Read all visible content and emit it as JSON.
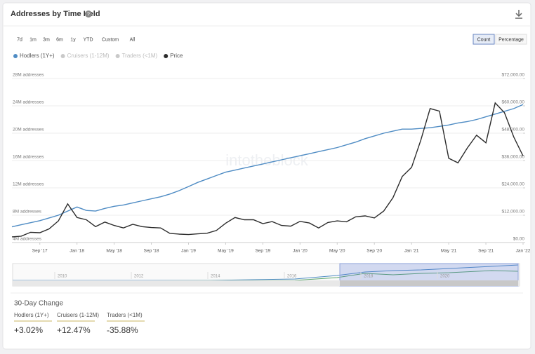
{
  "header": {
    "title": "Addresses by Time Held"
  },
  "range_buttons": [
    "7d",
    "1m",
    "3m",
    "6m",
    "1y",
    "YTD",
    "Custom",
    "All"
  ],
  "mode_buttons": [
    "Count",
    "Percentage"
  ],
  "active_mode": 0,
  "watermark": "intotheblock",
  "chart_data": {
    "type": "line",
    "categories": [
      null,
      null,
      null,
      "Sep '17",
      null,
      null,
      null,
      "Jan '18",
      null,
      null,
      null,
      "May '18",
      null,
      null,
      null,
      "Sep '18",
      null,
      null,
      null,
      "Jan '19",
      null,
      null,
      null,
      "May '19",
      null,
      null,
      null,
      "Sep '19",
      null,
      null,
      null,
      "Jan '20",
      null,
      null,
      null,
      "May '20",
      null,
      null,
      null,
      "Sep '20",
      null,
      null,
      null,
      "Jan '21",
      null,
      null,
      null,
      "May '21",
      null,
      null,
      null,
      "Sep '21",
      null,
      null,
      null,
      "Jan '22"
    ],
    "series": [
      {
        "name": "Hodlers (1Y+)",
        "color": "#4f8cc4",
        "visible": true,
        "values": [
          6300000,
          6600000,
          6900000,
          7200000,
          7600000,
          8000000,
          8600000,
          9200000,
          8700000,
          8600000,
          9000000,
          9300000,
          9500000,
          9800000,
          10100000,
          10400000,
          10700000,
          11100000,
          11600000,
          12200000,
          12800000,
          13300000,
          13800000,
          14300000,
          14600000,
          14900000,
          15200000,
          15500000,
          15800000,
          16100000,
          16400000,
          16700000,
          17000000,
          17300000,
          17600000,
          17900000,
          18300000,
          18700000,
          19200000,
          19600000,
          20000000,
          20300000,
          20600000,
          20600000,
          20700000,
          20800000,
          21000000,
          21200000,
          21500000,
          21700000,
          22000000,
          22400000,
          22800000,
          23200000,
          23600000,
          24200000
        ]
      },
      {
        "name": "Cruisers (1-12M)",
        "color": "#c9c9c9",
        "visible": false
      },
      {
        "name": "Traders (<1M)",
        "color": "#c9c9c9",
        "visible": false
      },
      {
        "name": "Price",
        "color": "#2b2b2b",
        "visible": true,
        "axis": "y2",
        "values": [
          2500,
          2800,
          4500,
          4300,
          6000,
          9500,
          17000,
          11000,
          10000,
          7000,
          9000,
          7500,
          6400,
          8000,
          7000,
          6600,
          6400,
          4000,
          3700,
          3500,
          3800,
          4100,
          5300,
          8500,
          11000,
          10000,
          10000,
          8300,
          9200,
          7500,
          7200,
          9300,
          8600,
          6400,
          8800,
          9500,
          9100,
          11300,
          11700,
          10800,
          13800,
          19700,
          29000,
          33000,
          45000,
          58800,
          57700,
          37000,
          35000,
          41500,
          47100,
          43800,
          61300,
          57000,
          46300,
          38000
        ]
      }
    ],
    "ylim": [
      4000000,
      28000000
    ],
    "yticks": [
      {
        "value": 4000000,
        "label": "4M addresses"
      },
      {
        "value": 8000000,
        "label": "8M addresses"
      },
      {
        "value": 12000000,
        "label": "12M addresses"
      },
      {
        "value": 16000000,
        "label": "16M addresses"
      },
      {
        "value": 20000000,
        "label": "20M addresses"
      },
      {
        "value": 24000000,
        "label": "24M addresses"
      },
      {
        "value": 28000000,
        "label": "28M addresses"
      }
    ],
    "y2lim": [
      0,
      72000
    ],
    "y2ticks": [
      {
        "value": 0,
        "label": "$0.00"
      },
      {
        "value": 12000,
        "label": "$12,000.00"
      },
      {
        "value": 24000,
        "label": "$24,000.00"
      },
      {
        "value": 36000,
        "label": "$36,000.00"
      },
      {
        "value": 48000,
        "label": "$48,000.00"
      },
      {
        "value": 60000,
        "label": "$60,000.00"
      },
      {
        "value": 72000,
        "label": "$72,000.00"
      }
    ],
    "grid": true,
    "navigator_labels": [
      "2010",
      "2012",
      "2014",
      "2016",
      "2018",
      "2020"
    ]
  },
  "change": {
    "title": "30-Day Change",
    "items": [
      {
        "name": "Hodlers (1Y+)",
        "value": "+3.02%"
      },
      {
        "name": "Cruisers (1-12M)",
        "value": "+12.47%"
      },
      {
        "name": "Traders (<1M)",
        "value": "-35.88%"
      }
    ]
  }
}
